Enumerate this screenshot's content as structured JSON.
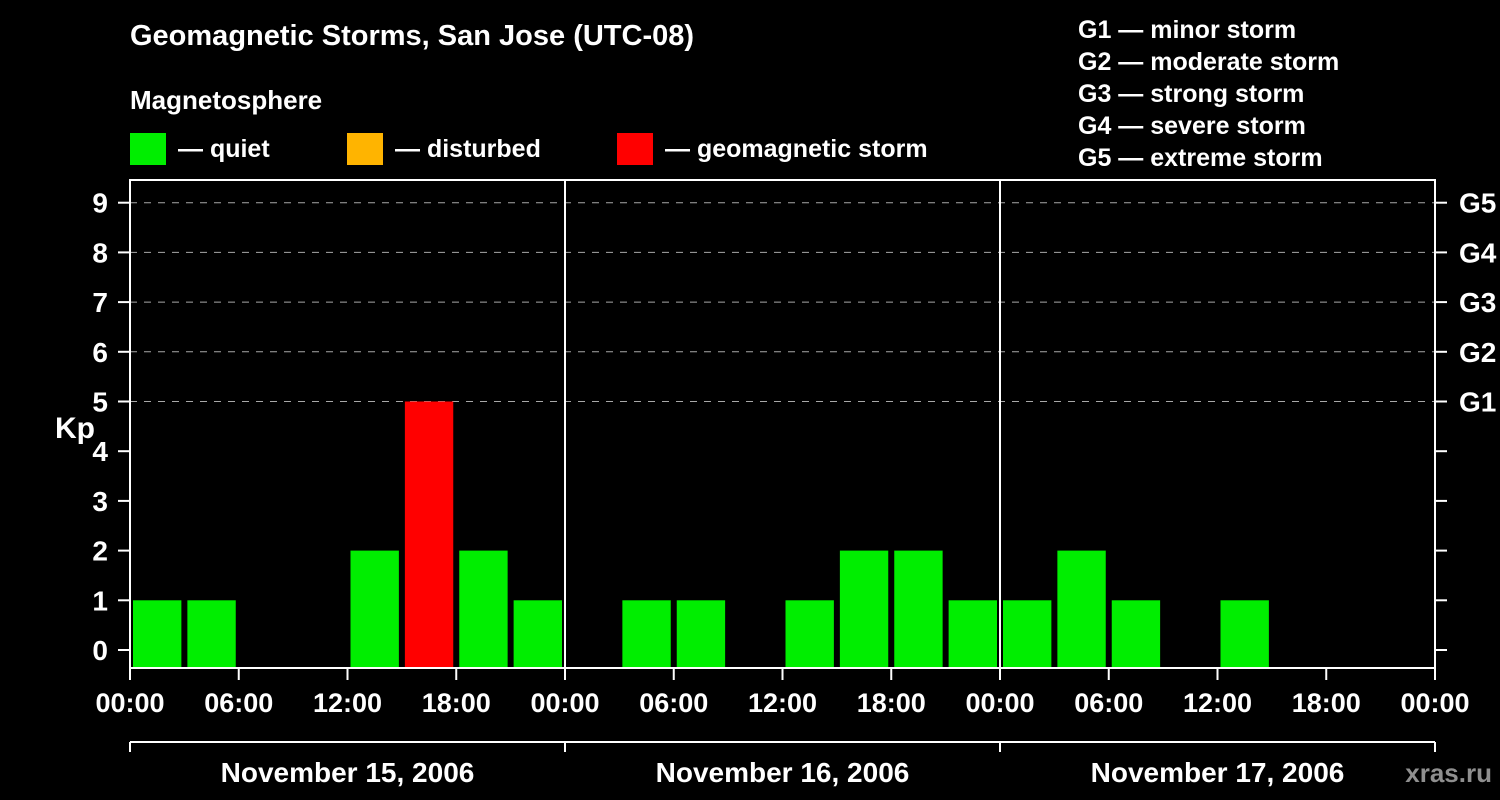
{
  "header": {
    "title": "Geomagnetic Storms, San Jose (UTC-08)",
    "subtitle": "Magnetosphere",
    "legend": [
      {
        "key": "quiet",
        "label": "— quiet",
        "color": "#00ee00"
      },
      {
        "key": "disturbed",
        "label": "— disturbed",
        "color": "#ffb400"
      },
      {
        "key": "storm",
        "label": "— geomagnetic storm",
        "color": "#ff0000"
      }
    ],
    "g_scale": [
      {
        "label": "G1 — minor storm"
      },
      {
        "label": "G2 — moderate storm"
      },
      {
        "label": "G3 — strong storm"
      },
      {
        "label": "G4 — severe storm"
      },
      {
        "label": "G5 — extreme storm"
      }
    ]
  },
  "watermark": "xras.ru",
  "chart_data": {
    "type": "bar",
    "title": "Geomagnetic Storms, San Jose (UTC-08)",
    "ylabel": "Kp",
    "ylim": [
      0,
      9
    ],
    "yticks": [
      0,
      1,
      2,
      3,
      4,
      5,
      6,
      7,
      8,
      9
    ],
    "gridlines": [
      5,
      6,
      7,
      8,
      9
    ],
    "right_labels": [
      {
        "value": 5,
        "label": "G1"
      },
      {
        "value": 6,
        "label": "G2"
      },
      {
        "value": 7,
        "label": "G3"
      },
      {
        "value": 8,
        "label": "G4"
      },
      {
        "value": 9,
        "label": "G5"
      }
    ],
    "time_ticks": [
      "00:00",
      "06:00",
      "12:00",
      "18:00",
      "00:00",
      "06:00",
      "12:00",
      "18:00",
      "00:00",
      "06:00",
      "12:00",
      "18:00",
      "00:00"
    ],
    "interval_hours": 3,
    "days": [
      {
        "date": "November 15, 2006",
        "values": [
          1,
          1,
          0,
          0,
          2,
          5,
          2,
          1
        ]
      },
      {
        "date": "November 16, 2006",
        "values": [
          0,
          1,
          1,
          0,
          1,
          2,
          2,
          1
        ]
      },
      {
        "date": "November 17, 2006",
        "values": [
          1,
          2,
          1,
          0,
          1,
          0,
          0,
          0
        ]
      }
    ],
    "colors": {
      "quiet": "#00ee00",
      "disturbed": "#ffb400",
      "storm": "#ff0000"
    },
    "color_rule": {
      "quiet_max": 3,
      "disturbed_max": 4
    },
    "legend_position": "top",
    "grid": "dashed horizontal at G-levels only"
  }
}
